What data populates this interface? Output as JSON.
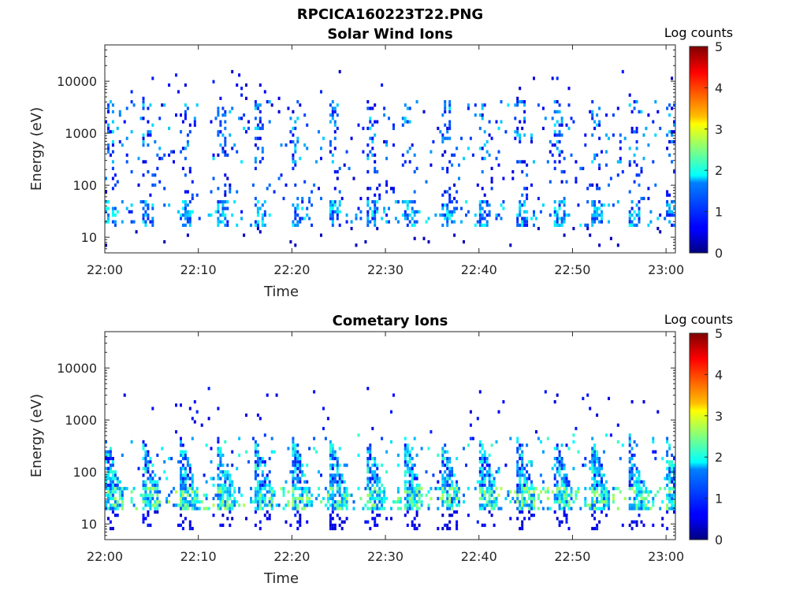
{
  "figure": {
    "filename_title": "RPCICA160223T22.PNG"
  },
  "chart_data": [
    {
      "type": "heatmap",
      "title": "Solar Wind Ions",
      "xlabel": "Time",
      "ylabel": "Energy (eV)",
      "y_scale": "log",
      "xlim": [
        "22:00",
        "23:01"
      ],
      "ylim": [
        5,
        50000
      ],
      "x_ticks": [
        "22:00",
        "22:10",
        "22:20",
        "22:30",
        "22:40",
        "22:50",
        "23:00"
      ],
      "y_ticks": [
        10,
        100,
        1000,
        10000
      ],
      "y_tick_labels": [
        "10",
        "100",
        "1000",
        "10000"
      ],
      "colorbar": {
        "label": "Log counts",
        "range": [
          0,
          5
        ],
        "ticks": [
          "0",
          "1",
          "2",
          "3",
          "4",
          "5"
        ],
        "colormap": "jet"
      },
      "sweep_period_minutes": 4,
      "description_values": {
        "low_energy_band_eV": [
          15,
          40
        ],
        "high_energy_band_eV": [
          300,
          4000
        ],
        "typical_log_counts": [
          0.5,
          2.2
        ]
      }
    },
    {
      "type": "heatmap",
      "title": "Cometary Ions",
      "xlabel": "Time",
      "ylabel": "Energy (eV)",
      "y_scale": "log",
      "xlim": [
        "22:00",
        "23:01"
      ],
      "ylim": [
        5,
        50000
      ],
      "x_ticks": [
        "22:00",
        "22:10",
        "22:20",
        "22:30",
        "22:40",
        "22:50",
        "23:00"
      ],
      "y_ticks": [
        10,
        100,
        1000,
        10000
      ],
      "y_tick_labels": [
        "10",
        "100",
        "1000",
        "10000"
      ],
      "colorbar": {
        "label": "Log counts",
        "range": [
          0,
          5
        ],
        "ticks": [
          "0",
          "1",
          "2",
          "3",
          "4",
          "5"
        ],
        "colormap": "jet"
      },
      "sweep_period_minutes": 4,
      "description_values": {
        "low_energy_band_eV": [
          15,
          45
        ],
        "cometary_band_eV": [
          40,
          500
        ],
        "typical_log_counts": [
          0.8,
          2.8
        ]
      }
    }
  ]
}
